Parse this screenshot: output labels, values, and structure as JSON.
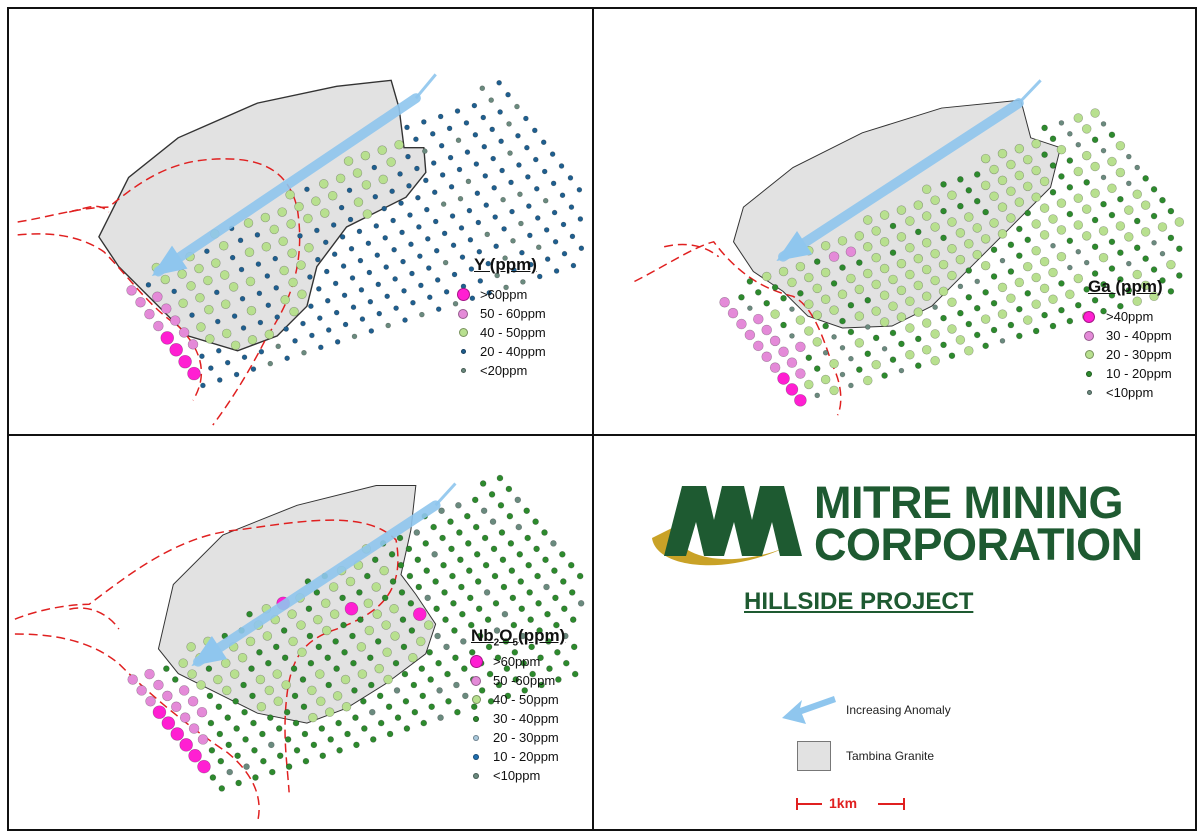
{
  "panels": {
    "y": {
      "title": "Y (ppm)",
      "legend": [
        {
          "label": ">60ppm",
          "color": "#ff1fd2",
          "size": 13
        },
        {
          "label": "50 - 60ppm",
          "color": "#e48ad8",
          "size": 10
        },
        {
          "label": "40 - 50ppm",
          "color": "#b8e08f",
          "size": 9
        },
        {
          "label": "20 - 40ppm",
          "color": "#1f5f8f",
          "size": 5
        },
        {
          "label": "<20ppm",
          "color": "#6a8a7e",
          "size": 5
        }
      ]
    },
    "ga": {
      "title": "Ga (ppm)",
      "legend": [
        {
          "label": ">40ppm",
          "color": "#ff1fd2",
          "size": 12
        },
        {
          "label": "30 - 40ppm",
          "color": "#e48ad8",
          "size": 10
        },
        {
          "label": "20 - 30ppm",
          "color": "#b8e08f",
          "size": 9
        },
        {
          "label": "10 - 20ppm",
          "color": "#2d8a2d",
          "size": 6
        },
        {
          "label": "<10ppm",
          "color": "#6a8a7e",
          "size": 5
        }
      ]
    },
    "nb": {
      "title_main": "Nb",
      "title_sub1": "2",
      "title_mid": "O",
      "title_sub2": "5",
      "title_end": "(ppm)",
      "legend": [
        {
          "label": ">60ppm",
          "color": "#ff1fd2",
          "size": 13
        },
        {
          "label": "50 -60ppm",
          "color": "#e48ad8",
          "size": 10
        },
        {
          "label": "40 - 50ppm",
          "color": "#b8e08f",
          "size": 9
        },
        {
          "label": "30 - 40ppm",
          "color": "#2d8a2d",
          "size": 6
        },
        {
          "label": "20 - 30ppm",
          "color": "#a8c8dc",
          "size": 6
        },
        {
          "label": "10 - 20ppm",
          "color": "#1f6fb0",
          "size": 6
        },
        {
          "label": "<10ppm",
          "color": "#6a8a7e",
          "size": 6
        }
      ]
    }
  },
  "branding": {
    "company_line1": "MITRE MINING",
    "company_line2": "CORPORATION",
    "project": "HILLSIDE PROJECT",
    "logo_color": "#1e5a31",
    "swoosh_color": "#c9a227"
  },
  "key": {
    "anomaly_label": "Increasing Anomaly",
    "granite_label": "Tambina Granite",
    "scale_label": "1km",
    "arrow_color": "#8fc6ee",
    "granite_color": "#e2e2e2",
    "scale_color": "#e02020"
  }
}
